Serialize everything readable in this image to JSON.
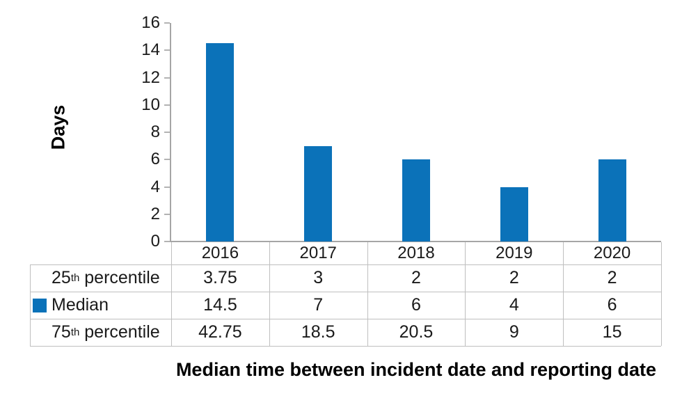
{
  "chart_data": {
    "type": "bar",
    "title": "Median time between incident date and reporting date",
    "ylabel": "Days",
    "ylim": [
      0,
      16
    ],
    "ytick_step": 2,
    "ytick_labels": [
      "0",
      "2",
      "4",
      "6",
      "8",
      "10",
      "12",
      "14",
      "16"
    ],
    "categories": [
      "2016",
      "2017",
      "2018",
      "2019",
      "2020"
    ],
    "plotted_series": "Median",
    "bar_color": "#0b72b9",
    "grid": false,
    "legend_position": "table-row-marker",
    "series": [
      {
        "name": "25th percentile",
        "values": [
          3.75,
          3,
          2,
          2,
          2
        ]
      },
      {
        "name": "Median",
        "values": [
          14.5,
          7,
          6,
          4,
          6
        ]
      },
      {
        "name": "75th percentile",
        "values": [
          42.75,
          18.5,
          20.5,
          9,
          15
        ]
      }
    ]
  },
  "table": {
    "rows": [
      {
        "label": "25",
        "sup": "th",
        "label_rest": " percentile",
        "marker": false,
        "series_index": 0
      },
      {
        "label": "Median",
        "sup": "",
        "label_rest": "",
        "marker": true,
        "series_index": 1
      },
      {
        "label": "75",
        "sup": "th",
        "label_rest": " percentile",
        "marker": false,
        "series_index": 2
      }
    ]
  }
}
